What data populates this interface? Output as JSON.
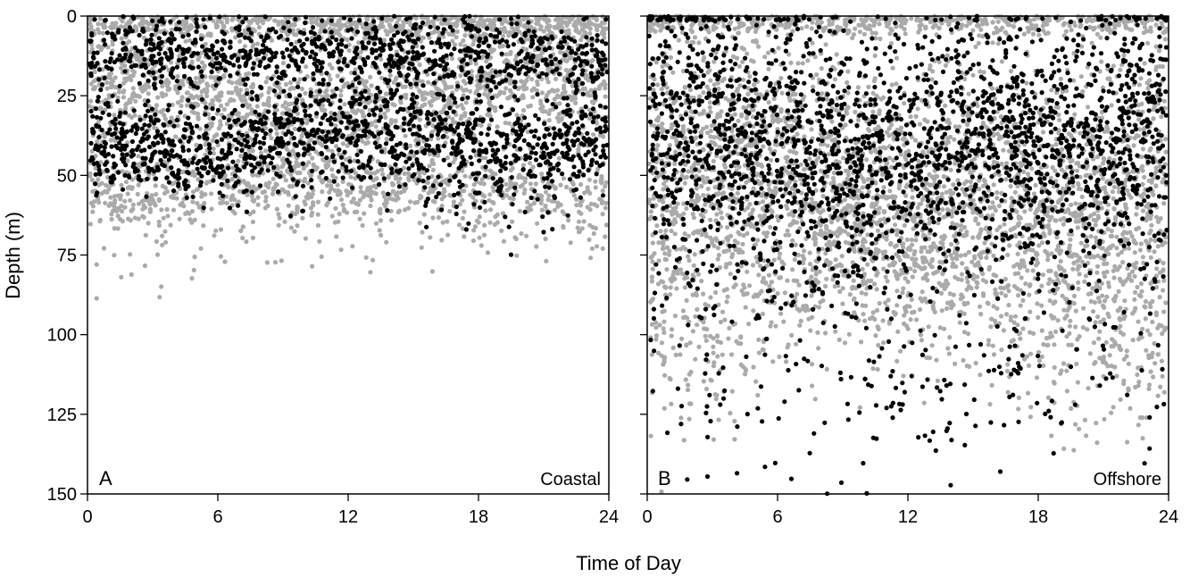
{
  "chart_data": {
    "type": "scatter",
    "xlabel": "Time of Day",
    "ylabel": "Depth (m)",
    "xlim": [
      0,
      24
    ],
    "ylim": [
      0,
      150
    ],
    "y_inverted": true,
    "xticks": [
      0,
      6,
      12,
      18,
      24
    ],
    "yticks": [
      0,
      25,
      50,
      75,
      100,
      125,
      150
    ],
    "colors": {
      "gray_points": "#aaaaaa",
      "black_points": "#000000"
    },
    "panels": [
      {
        "letter": "A",
        "name": "Coastal",
        "bands": [
          {
            "color": "gray",
            "t": [
              0,
              3,
              6,
              9,
              12,
              15,
              18,
              21,
              24
            ],
            "center": [
              24,
              22,
              26,
              30,
              32,
              28,
              20,
              18,
              20
            ],
            "spread": [
              10,
              10,
              10,
              11,
              12,
              11,
              9,
              9,
              10
            ],
            "n": 1700
          },
          {
            "color": "gray",
            "t": [
              0,
              3,
              6,
              9,
              12,
              15,
              18,
              21,
              24
            ],
            "center": [
              3,
              3,
              3,
              3,
              3,
              3,
              3,
              3,
              3
            ],
            "spread": [
              2.5,
              2.5,
              2.5,
              2.5,
              2.5,
              2.5,
              2.5,
              2.5,
              2.5
            ],
            "n": 700
          },
          {
            "color": "gray",
            "t": [
              0,
              3,
              6,
              9,
              12,
              15,
              18,
              21,
              24
            ],
            "center": [
              55,
              57,
              54,
              52,
              55,
              54,
              53,
              57,
              58
            ],
            "spread": [
              7,
              7,
              7,
              7,
              7,
              7,
              7,
              7,
              7
            ],
            "n": 900
          },
          {
            "color": "gray",
            "t": [
              0,
              3,
              6,
              9,
              12,
              15,
              18,
              21,
              24
            ],
            "center": [
              74,
              74,
              74,
              70,
              70,
              70,
              68,
              66,
              66
            ],
            "spread": [
              10,
              10,
              9,
              8,
              7,
              7,
              6,
              6,
              6
            ],
            "n": 60
          },
          {
            "color": "black",
            "t": [
              0,
              3,
              6,
              9,
              12,
              15,
              18,
              21,
              24
            ],
            "center": [
              12,
              12,
              12,
              12,
              12,
              12,
              12,
              12,
              12
            ],
            "spread": [
              6,
              6,
              6,
              6,
              6,
              6,
              6,
              6,
              6
            ],
            "n": 900
          },
          {
            "color": "black",
            "t": [
              0,
              3,
              6,
              9,
              12,
              15,
              18,
              21,
              24
            ],
            "center": [
              40,
              42,
              44,
              38,
              36,
              38,
              42,
              44,
              40
            ],
            "spread": [
              7,
              7,
              7,
              9,
              10,
              11,
              10,
              8,
              7
            ],
            "n": 1300
          }
        ]
      },
      {
        "letter": "B",
        "name": "Offshore",
        "bands": [
          {
            "color": "gray",
            "t": [
              0,
              3,
              6,
              9,
              12,
              15,
              18,
              21,
              24
            ],
            "center": [
              2,
              2,
              2,
              2,
              2,
              2,
              2,
              2,
              2
            ],
            "spread": [
              2,
              2,
              2,
              2,
              2,
              2,
              2,
              2,
              2
            ],
            "n": 500
          },
          {
            "color": "gray",
            "t": [
              0,
              3,
              6,
              9,
              12,
              15,
              18,
              21,
              24
            ],
            "center": [
              50,
              52,
              48,
              55,
              58,
              55,
              60,
              62,
              55
            ],
            "spread": [
              22,
              24,
              22,
              22,
              22,
              22,
              22,
              24,
              24
            ],
            "n": 3200
          },
          {
            "color": "gray",
            "t": [
              0,
              3,
              6,
              9,
              12,
              15,
              18,
              21,
              24
            ],
            "center": [
              95,
              100,
              90,
              80,
              85,
              88,
              100,
              105,
              100
            ],
            "spread": [
              16,
              16,
              14,
              10,
              10,
              12,
              18,
              18,
              16
            ],
            "n": 550
          },
          {
            "color": "black",
            "t": [
              0,
              3,
              6,
              9,
              12,
              15,
              18,
              21,
              24
            ],
            "center": [
              30,
              35,
              40,
              45,
              45,
              38,
              38,
              40,
              35
            ],
            "spread": [
              22,
              22,
              22,
              20,
              20,
              20,
              20,
              20,
              22
            ],
            "n": 2300
          },
          {
            "color": "black",
            "t": [
              0,
              3,
              6,
              9,
              12,
              15,
              18,
              21,
              24
            ],
            "center": [
              100,
              110,
              105,
              115,
              125,
              118,
              110,
              105,
              110
            ],
            "spread": [
              18,
              18,
              18,
              18,
              15,
              16,
              18,
              18,
              18
            ],
            "n": 230
          }
        ]
      }
    ]
  }
}
